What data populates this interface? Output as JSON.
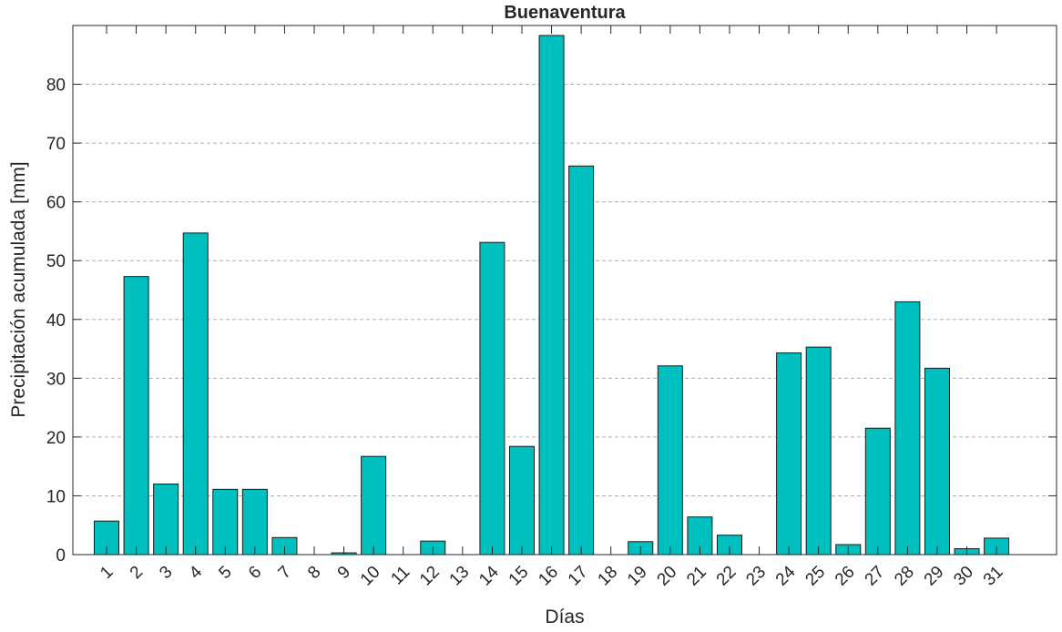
{
  "chart_data": {
    "type": "bar",
    "title": "Buenaventura",
    "x_label": "Días",
    "y_label": "Precipitación acumulada [mm]",
    "categories": [
      "1",
      "2",
      "3",
      "4",
      "5",
      "6",
      "7",
      "8",
      "9",
      "10",
      "11",
      "12",
      "13",
      "14",
      "15",
      "16",
      "17",
      "18",
      "19",
      "20",
      "21",
      "22",
      "23",
      "24",
      "25",
      "26",
      "27",
      "28",
      "29",
      "30",
      "31"
    ],
    "values": [
      5.7,
      47.3,
      12,
      54.7,
      11.1,
      11.1,
      2.9,
      0,
      0.3,
      16.7,
      0,
      2.3,
      0,
      53.1,
      18.4,
      88.3,
      66.1,
      0,
      2.2,
      32.1,
      6.4,
      3.3,
      0,
      34.3,
      35.3,
      1.7,
      21.5,
      43,
      31.7,
      1.0,
      2.8
    ],
    "color": "#00bfbf",
    "ylim": [
      0,
      90
    ],
    "yticks": [
      0,
      10,
      20,
      30,
      40,
      50,
      60,
      70,
      80
    ],
    "grid": true
  }
}
